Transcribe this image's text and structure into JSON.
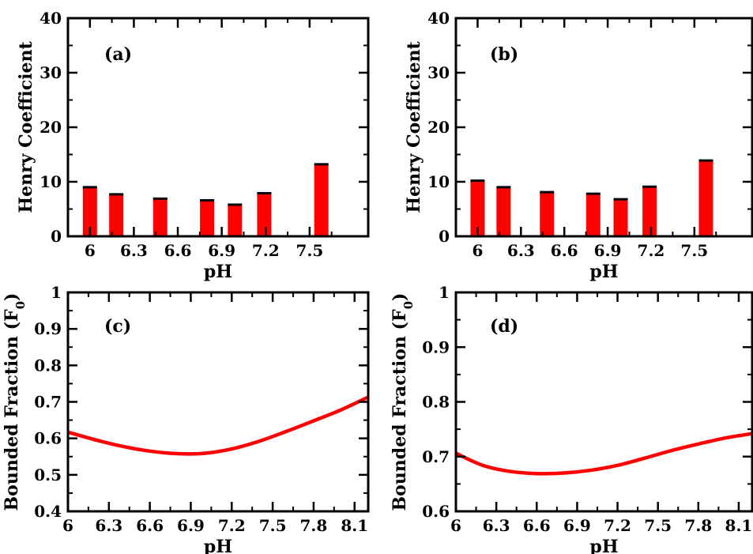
{
  "chart_data": [
    {
      "panel": "(a)",
      "type": "bar",
      "xlabel": "pH",
      "ylabel": "Henry Coefficient",
      "x": [
        6.0,
        6.18,
        6.48,
        6.8,
        6.99,
        7.19,
        7.58
      ],
      "values": [
        9.0,
        7.7,
        6.9,
        6.6,
        5.8,
        7.9,
        13.2
      ],
      "xlim": [
        5.85,
        7.9
      ],
      "ylim": [
        0,
        40
      ],
      "xticks": [
        "6",
        "6.3",
        "6.6",
        "6.9",
        "7.2",
        "7.5"
      ],
      "xtick_values": [
        6.0,
        6.3,
        6.6,
        6.9,
        7.2,
        7.5
      ],
      "yticks": [
        "0",
        "10",
        "20",
        "30",
        "40"
      ],
      "ytick_values": [
        0,
        10,
        20,
        30,
        40
      ],
      "color": "#ff0000"
    },
    {
      "panel": "(b)",
      "type": "bar",
      "xlabel": "pH",
      "ylabel": "Henry Coefficient",
      "x": [
        6.0,
        6.18,
        6.48,
        6.8,
        6.99,
        7.19,
        7.58
      ],
      "values": [
        10.2,
        9.0,
        8.1,
        7.8,
        6.8,
        9.1,
        13.9
      ],
      "xlim": [
        5.85,
        7.9
      ],
      "ylim": [
        0,
        40
      ],
      "xticks": [
        "6",
        "6.3",
        "6.6",
        "6.9",
        "7.2",
        "7.5"
      ],
      "xtick_values": [
        6.0,
        6.3,
        6.6,
        6.9,
        7.2,
        7.5
      ],
      "yticks": [
        "0",
        "10",
        "20",
        "30",
        "40"
      ],
      "ytick_values": [
        0,
        10,
        20,
        30,
        40
      ],
      "color": "#ff0000"
    },
    {
      "panel": "(c)",
      "type": "line",
      "xlabel": "pH",
      "ylabel": "Bounded Fraction (F",
      "ylabel_sub": "0",
      "ylabel_end": ")",
      "x": [
        6.0,
        6.2,
        6.4,
        6.6,
        6.8,
        7.0,
        7.2,
        7.4,
        7.6,
        7.8,
        8.0,
        8.2
      ],
      "values": [
        0.617,
        0.596,
        0.578,
        0.565,
        0.558,
        0.559,
        0.571,
        0.592,
        0.619,
        0.648,
        0.678,
        0.713
      ],
      "xlim": [
        6.0,
        8.2
      ],
      "ylim": [
        0.4,
        1.0
      ],
      "xticks": [
        "6",
        "6.3",
        "6.6",
        "6.9",
        "7.2",
        "7.5",
        "7.8",
        "8.1"
      ],
      "xtick_values": [
        6.0,
        6.3,
        6.6,
        6.9,
        7.2,
        7.5,
        7.8,
        8.1
      ],
      "yticks": [
        "0.4",
        "0.5",
        "0.6",
        "0.7",
        "0.8",
        "0.9",
        "1"
      ],
      "ytick_values": [
        0.4,
        0.5,
        0.6,
        0.7,
        0.8,
        0.9,
        1.0
      ],
      "color": "#ff0000"
    },
    {
      "panel": "(d)",
      "type": "line",
      "xlabel": "pH",
      "ylabel": "Bounded Fraction (F",
      "ylabel_sub": "0",
      "ylabel_end": ")",
      "x": [
        6.0,
        6.2,
        6.4,
        6.6,
        6.8,
        7.0,
        7.2,
        7.4,
        7.6,
        7.8,
        8.0,
        8.2
      ],
      "values": [
        0.706,
        0.684,
        0.673,
        0.669,
        0.67,
        0.675,
        0.684,
        0.697,
        0.711,
        0.723,
        0.734,
        0.742
      ],
      "xlim": [
        6.0,
        8.2
      ],
      "ylim": [
        0.6,
        1.0
      ],
      "xticks": [
        "6",
        "6.3",
        "6.6",
        "6.9",
        "7.2",
        "7.5",
        "7.8",
        "8.1"
      ],
      "xtick_values": [
        6.0,
        6.3,
        6.6,
        6.9,
        7.2,
        7.5,
        7.8,
        8.1
      ],
      "yticks": [
        "0.6",
        "0.7",
        "0.8",
        "0.9",
        "1"
      ],
      "ytick_values": [
        0.6,
        0.7,
        0.8,
        0.9,
        1.0
      ],
      "color": "#ff0000"
    }
  ]
}
